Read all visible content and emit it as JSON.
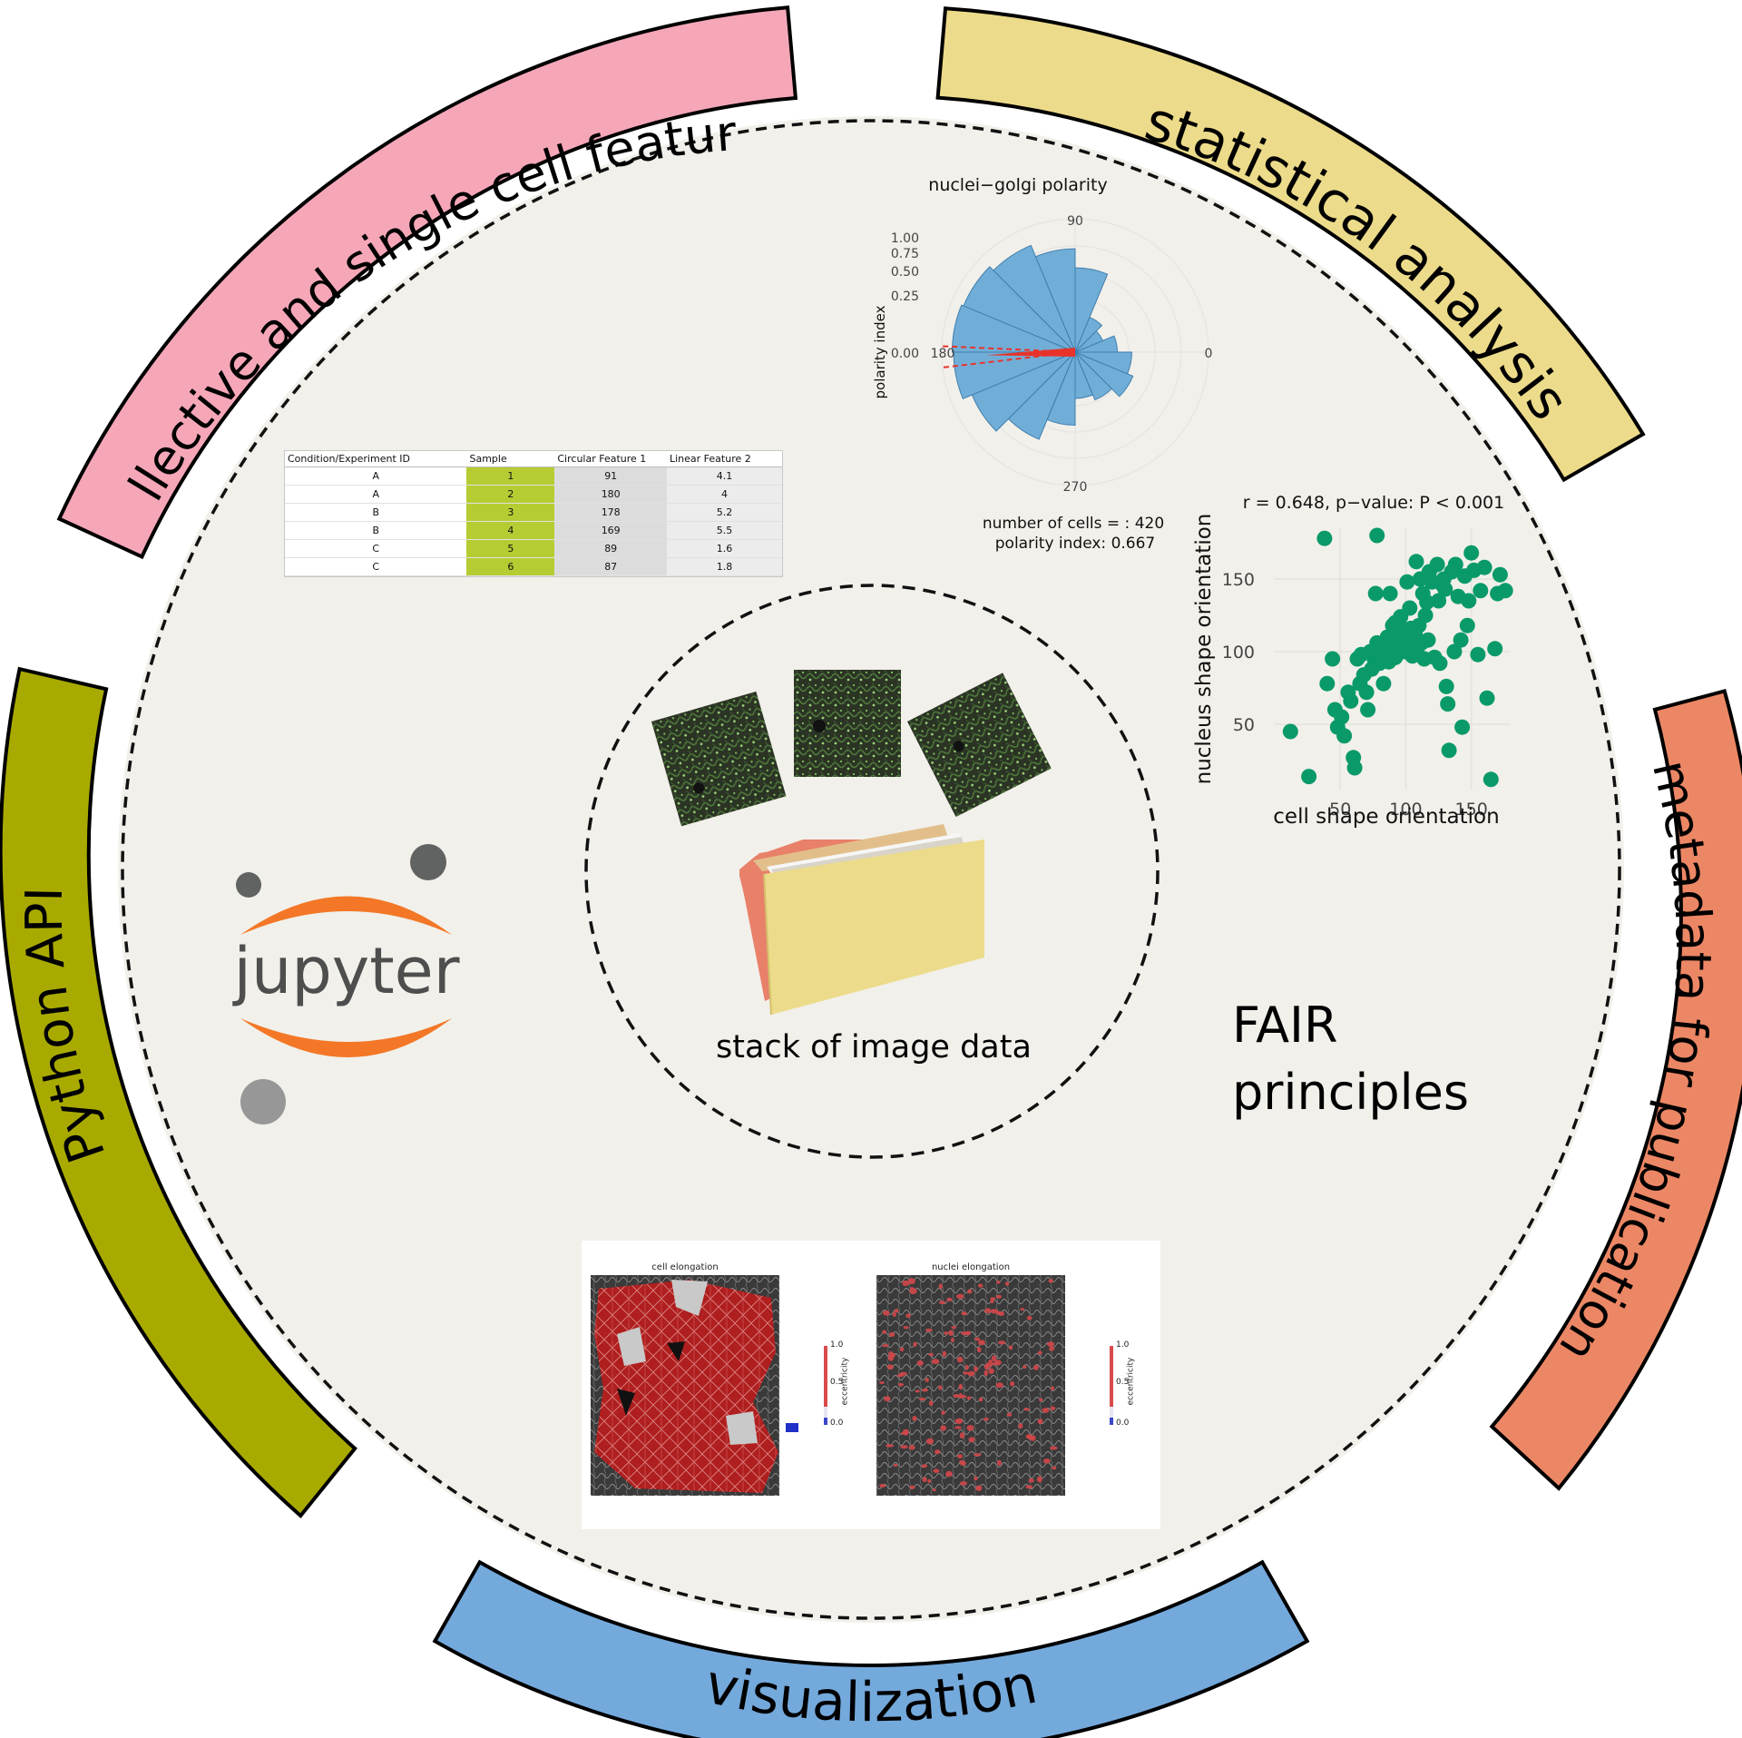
{
  "arcs": [
    {
      "id": "collective",
      "label": "collective and single cell features",
      "color": "#f5a7b8"
    },
    {
      "id": "statistical",
      "label": "statistical analysis",
      "color": "#ecdb8a"
    },
    {
      "id": "metadata",
      "label": "metadata for publication",
      "color": "#ec8765"
    },
    {
      "id": "visualization",
      "label": "visualization",
      "color": "#74a9dc"
    },
    {
      "id": "python",
      "label": "Python API",
      "color": "#a9aa00"
    }
  ],
  "center": {
    "stack_label": "stack of image data",
    "fair_line1": "FAIR",
    "fair_line2": "principles"
  },
  "logo": {
    "text": "jupyter",
    "orange": "#f37726",
    "grey_dark": "#616262",
    "grey_light": "#989798",
    "text_color": "#4e4e4e"
  },
  "colors": {
    "inner_bg": "#f2f0ea",
    "scatter_green": "#0a9a6a",
    "polar_blue": "#5ba2d4",
    "polar_red": "#e8332b"
  },
  "table": {
    "headers": [
      "Condition/Experiment ID",
      "Sample",
      "Circular Feature 1",
      "Linear Feature 2"
    ],
    "rows": [
      [
        "A",
        "1",
        "91",
        "4.1"
      ],
      [
        "A",
        "2",
        "180",
        "4"
      ],
      [
        "B",
        "3",
        "178",
        "5.2"
      ],
      [
        "B",
        "4",
        "169",
        "5.5"
      ],
      [
        "C",
        "5",
        "89",
        "1.6"
      ],
      [
        "C",
        "6",
        "87",
        "1.8"
      ]
    ]
  },
  "polar_chart": {
    "title": "nuclei−golgi polarity",
    "ylabel": "polarity index",
    "angle_ticks": [
      "90",
      "0",
      "180",
      "270"
    ],
    "radial_ticks": [
      "1.00",
      "0.75",
      "0.50",
      "0.25",
      "0.00"
    ],
    "footer_line1": "number of cells = : 420",
    "footer_line2": "polarity index: 0.667"
  },
  "scatter_caption": {
    "text": "r = 0.648, p−value: P < 0.001"
  },
  "elongation": {
    "left": {
      "title": "cell elongation",
      "colorbar_label": "eccentricity",
      "ticks": [
        "1.0",
        "0.5",
        "0.0"
      ]
    },
    "right": {
      "title": "nuclei elongation",
      "colorbar_label": "eccentricity",
      "ticks": [
        "1.0",
        "0.5",
        "0.0"
      ]
    }
  },
  "chart_data": [
    {
      "type": "bar",
      "subtype": "polar-histogram",
      "title": "nuclei−golgi polarity",
      "ylabel": "polarity index",
      "ylim": [
        0,
        1
      ],
      "categories": [
        "0-22.5",
        "22.5-45",
        "45-67.5",
        "67.5-90",
        "90-112.5",
        "112.5-135",
        "135-157.5",
        "157.5-180",
        "180-202.5",
        "202.5-225",
        "225-247.5",
        "247.5-270",
        "270-292.5",
        "292.5-315",
        "315-337.5",
        "337.5-360"
      ],
      "values": [
        0.1,
        0.05,
        0.08,
        0.4,
        0.6,
        0.75,
        0.82,
        0.85,
        0.83,
        0.7,
        0.5,
        0.3,
        0.12,
        0.15,
        0.22,
        0.18
      ],
      "mean_direction_deg": 182,
      "polarity_index": 0.667,
      "n_cells": 420
    },
    {
      "type": "scatter",
      "title": "r = 0.648, p−value: P < 0.001",
      "xlabel": "cell shape orientation",
      "ylabel": "nucleus shape orientation",
      "xlim": [
        0,
        180
      ],
      "ylim": [
        5,
        185
      ],
      "xticks": [
        50,
        100,
        150
      ],
      "yticks": [
        50,
        100,
        150
      ],
      "grid": true,
      "series": [
        {
          "points": [
            [
              12,
              45
            ],
            [
              26,
              14
            ],
            [
              40,
              78
            ],
            [
              44,
              95
            ],
            [
              46,
              60
            ],
            [
              48,
              48
            ],
            [
              51,
              55
            ],
            [
              53,
              42
            ],
            [
              56,
              72
            ],
            [
              58,
              66
            ],
            [
              60,
              27
            ],
            [
              61,
              20
            ],
            [
              63,
              95
            ],
            [
              65,
              78
            ],
            [
              66,
              98
            ],
            [
              68,
              84
            ],
            [
              70,
              72
            ],
            [
              71,
              60
            ],
            [
              73,
              100
            ],
            [
              74,
              88
            ],
            [
              76,
              95
            ],
            [
              77,
              140
            ],
            [
              78,
              106
            ],
            [
              80,
              92
            ],
            [
              82,
              98
            ],
            [
              83,
              78
            ],
            [
              84,
              104
            ],
            [
              86,
              110
            ],
            [
              87,
              93
            ],
            [
              88,
              140
            ],
            [
              89,
              102
            ],
            [
              90,
              118
            ],
            [
              92,
              96
            ],
            [
              93,
              106
            ],
            [
              94,
              112
            ],
            [
              95,
              100
            ],
            [
              96,
              124
            ],
            [
              97,
              108
            ],
            [
              98,
              115
            ],
            [
              99,
              100
            ],
            [
              100,
              104
            ],
            [
              101,
              148
            ],
            [
              102,
              110
            ],
            [
              103,
              130
            ],
            [
              104,
              116
            ],
            [
              105,
              97
            ],
            [
              106,
              108
            ],
            [
              107,
              112
            ],
            [
              108,
              162
            ],
            [
              109,
              103
            ],
            [
              110,
              118
            ],
            [
              111,
              150
            ],
            [
              112,
              106
            ],
            [
              113,
              140
            ],
            [
              114,
              95
            ],
            [
              115,
              125
            ],
            [
              116,
              134
            ],
            [
              117,
              108
            ],
            [
              118,
              155
            ],
            [
              120,
              148
            ],
            [
              122,
              96
            ],
            [
              124,
              160
            ],
            [
              125,
              135
            ],
            [
              126,
              92
            ],
            [
              128,
              146
            ],
            [
              129,
              150
            ],
            [
              130,
              143
            ],
            [
              131,
              76
            ],
            [
              132,
              64
            ],
            [
              133,
              32
            ],
            [
              135,
              155
            ],
            [
              137,
              100
            ],
            [
              138,
              160
            ],
            [
              140,
              138
            ],
            [
              142,
              108
            ],
            [
              143,
              48
            ],
            [
              145,
              152
            ],
            [
              147,
              118
            ],
            [
              148,
              135
            ],
            [
              150,
              168
            ],
            [
              152,
              156
            ],
            [
              155,
              98
            ],
            [
              157,
              142
            ],
            [
              160,
              158
            ],
            [
              162,
              68
            ],
            [
              165,
              12
            ],
            [
              168,
              102
            ],
            [
              170,
              140
            ],
            [
              172,
              153
            ],
            [
              176,
              142
            ],
            [
              38,
              178
            ],
            [
              78,
              180
            ],
            [
              92,
              120
            ]
          ]
        }
      ]
    }
  ]
}
